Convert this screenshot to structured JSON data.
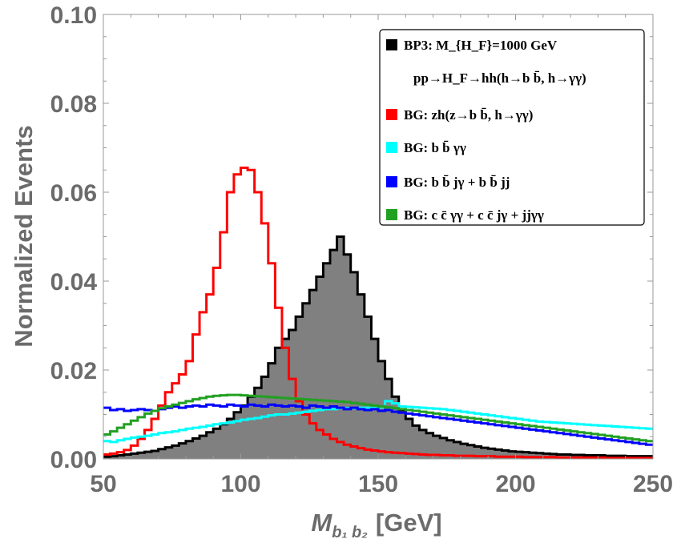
{
  "chart_data": {
    "type": "histogram",
    "xlabel_main": "M",
    "xlabel_sub": "b₁ b₂",
    "xlabel_unit": "[GeV]",
    "ylabel": "Normalized Events",
    "xlim": [
      50,
      250
    ],
    "ylim": [
      0,
      0.1
    ],
    "x_ticks": [
      "50",
      "100",
      "150",
      "200",
      "250"
    ],
    "y_ticks": [
      "0.00",
      "0.02",
      "0.04",
      "0.06",
      "0.08",
      "0.10"
    ],
    "bin_width": 2.5,
    "legend_position": "top-right",
    "legend": [
      {
        "text": "BP3: M_{H_F}=1000 GeV",
        "color": "#000000"
      },
      {
        "text": "pp→H_F→hh(h→b b̄, h→γγ)",
        "color": ""
      },
      {
        "text": "BG: zh(z→b b̄, h→γγ)",
        "color": "#ff0000"
      },
      {
        "text": "BG: b b̄ γγ",
        "color": "#00ffff"
      },
      {
        "text": "BG: b b̄ jγ + b b̄ jj",
        "color": "#0000ff"
      },
      {
        "text": "BG: c c̄ γγ + c c̄ jγ + jjγγ",
        "color": "#22a022"
      }
    ],
    "series": [
      {
        "name": "BP3: M_{H_F}=1000 GeV",
        "color": "#000000",
        "fill": "#808080",
        "style": "filled-step",
        "x_start": 50,
        "values": [
          0.0005,
          0.0006,
          0.0008,
          0.001,
          0.0012,
          0.0014,
          0.0016,
          0.0018,
          0.0022,
          0.0026,
          0.003,
          0.0035,
          0.004,
          0.0046,
          0.0052,
          0.006,
          0.0068,
          0.0078,
          0.009,
          0.0105,
          0.012,
          0.014,
          0.016,
          0.0185,
          0.0215,
          0.025,
          0.027,
          0.029,
          0.032,
          0.035,
          0.038,
          0.041,
          0.044,
          0.047,
          0.05,
          0.046,
          0.042,
          0.037,
          0.032,
          0.027,
          0.022,
          0.018,
          0.014,
          0.011,
          0.009,
          0.0075,
          0.0065,
          0.0058,
          0.0052,
          0.0047,
          0.0042,
          0.0038,
          0.0034,
          0.0031,
          0.0028,
          0.0025,
          0.0023,
          0.0021,
          0.0019,
          0.0017,
          0.0016,
          0.0015,
          0.0014,
          0.0013,
          0.0012,
          0.0011,
          0.001,
          0.001,
          0.0009,
          0.0009,
          0.0008,
          0.0008,
          0.0008,
          0.0007,
          0.0007,
          0.0007,
          0.0006,
          0.0006,
          0.0006,
          0.0006
        ]
      },
      {
        "name": "BG: zh(z→b b̄, h→γγ)",
        "color": "#ff0000",
        "style": "step",
        "x_start": 50,
        "values": [
          0.001,
          0.0012,
          0.0015,
          0.002,
          0.003,
          0.0045,
          0.0065,
          0.009,
          0.012,
          0.015,
          0.017,
          0.019,
          0.022,
          0.028,
          0.033,
          0.037,
          0.043,
          0.051,
          0.06,
          0.064,
          0.0655,
          0.065,
          0.06,
          0.053,
          0.044,
          0.034,
          0.025,
          0.018,
          0.013,
          0.01,
          0.008,
          0.0065,
          0.0055,
          0.0045,
          0.0038,
          0.0032,
          0.0028,
          0.0024,
          0.0021,
          0.0019,
          0.0017,
          0.0015,
          0.0014,
          0.0013,
          0.0012,
          0.0011,
          0.001,
          0.0009,
          0.0009,
          0.0008,
          0.0008,
          0.0007,
          0.0007,
          0.0007,
          0.0006,
          0.0006,
          0.0006,
          0.0005,
          0.0005,
          0.0005,
          0.0005,
          0.0004,
          0.0004,
          0.0004,
          0.0004,
          0.0004,
          0.0003,
          0.0003,
          0.0003,
          0.0003,
          0.0003,
          0.0003,
          0.0003,
          0.0002,
          0.0002,
          0.0002,
          0.0002,
          0.0002,
          0.0002,
          0.0002
        ]
      },
      {
        "name": "BG: b b̄ γγ",
        "color": "#00ffff",
        "style": "step",
        "x_start": 50,
        "values": [
          0.004,
          0.0038,
          0.0042,
          0.0045,
          0.0048,
          0.005,
          0.0052,
          0.0055,
          0.0058,
          0.006,
          0.0062,
          0.0065,
          0.0068,
          0.007,
          0.0072,
          0.0075,
          0.0078,
          0.008,
          0.0082,
          0.0085,
          0.0088,
          0.009,
          0.0092,
          0.0095,
          0.0098,
          0.01,
          0.01,
          0.0102,
          0.0104,
          0.0106,
          0.0108,
          0.011,
          0.0112,
          0.0112,
          0.0114,
          0.0114,
          0.0114,
          0.0115,
          0.0115,
          0.0116,
          0.0116,
          0.013,
          0.0125,
          0.0118,
          0.0117,
          0.0116,
          0.0115,
          0.0114,
          0.0113,
          0.0112,
          0.011,
          0.0108,
          0.0106,
          0.0104,
          0.0102,
          0.01,
          0.0098,
          0.0096,
          0.0094,
          0.0092,
          0.009,
          0.0088,
          0.0086,
          0.0084,
          0.0083,
          0.0082,
          0.0081,
          0.008,
          0.0079,
          0.0078,
          0.0077,
          0.0076,
          0.0075,
          0.0074,
          0.0073,
          0.0072,
          0.0071,
          0.007,
          0.0069,
          0.0068
        ]
      },
      {
        "name": "BG: b b̄ jγ + b b̄ jj",
        "color": "#0000ff",
        "style": "step",
        "x_start": 50,
        "values": [
          0.0115,
          0.011,
          0.0112,
          0.0108,
          0.011,
          0.0112,
          0.011,
          0.0108,
          0.0112,
          0.0115,
          0.0118,
          0.0115,
          0.0118,
          0.012,
          0.0118,
          0.0122,
          0.012,
          0.0118,
          0.0122,
          0.012,
          0.0118,
          0.0122,
          0.012,
          0.0118,
          0.0122,
          0.012,
          0.0118,
          0.012,
          0.0118,
          0.0115,
          0.012,
          0.0118,
          0.0115,
          0.0118,
          0.0115,
          0.0112,
          0.0115,
          0.0112,
          0.011,
          0.0112,
          0.0108,
          0.011,
          0.0106,
          0.0104,
          0.0102,
          0.01,
          0.0098,
          0.0096,
          0.0094,
          0.0092,
          0.009,
          0.0088,
          0.0086,
          0.0084,
          0.0082,
          0.008,
          0.0078,
          0.0076,
          0.0074,
          0.0072,
          0.007,
          0.0068,
          0.0066,
          0.0064,
          0.0062,
          0.006,
          0.0058,
          0.0056,
          0.0054,
          0.0052,
          0.005,
          0.0048,
          0.0046,
          0.0044,
          0.0042,
          0.004,
          0.0038,
          0.0036,
          0.0034,
          0.0032
        ]
      },
      {
        "name": "BG: c c̄ γγ + c c̄ jγ + jjγγ",
        "color": "#22a022",
        "style": "step",
        "x_start": 50,
        "values": [
          0.0055,
          0.0062,
          0.007,
          0.0078,
          0.0086,
          0.0094,
          0.0102,
          0.0108,
          0.0114,
          0.0118,
          0.0122,
          0.0126,
          0.013,
          0.0134,
          0.0137,
          0.014,
          0.0142,
          0.0143,
          0.0144,
          0.0144,
          0.0143,
          0.0142,
          0.0141,
          0.014,
          0.0139,
          0.0138,
          0.0137,
          0.0136,
          0.0135,
          0.0134,
          0.0133,
          0.0132,
          0.0131,
          0.013,
          0.0129,
          0.0128,
          0.0126,
          0.0124,
          0.0122,
          0.012,
          0.0118,
          0.0116,
          0.0114,
          0.0112,
          0.011,
          0.0108,
          0.0106,
          0.0104,
          0.0102,
          0.01,
          0.0098,
          0.0096,
          0.0094,
          0.0092,
          0.009,
          0.0088,
          0.0086,
          0.0084,
          0.0082,
          0.008,
          0.0078,
          0.0076,
          0.0074,
          0.0072,
          0.007,
          0.0068,
          0.0066,
          0.0064,
          0.0062,
          0.006,
          0.0058,
          0.0056,
          0.0054,
          0.0052,
          0.005,
          0.0048,
          0.0046,
          0.0044,
          0.0042,
          0.004
        ]
      }
    ]
  }
}
